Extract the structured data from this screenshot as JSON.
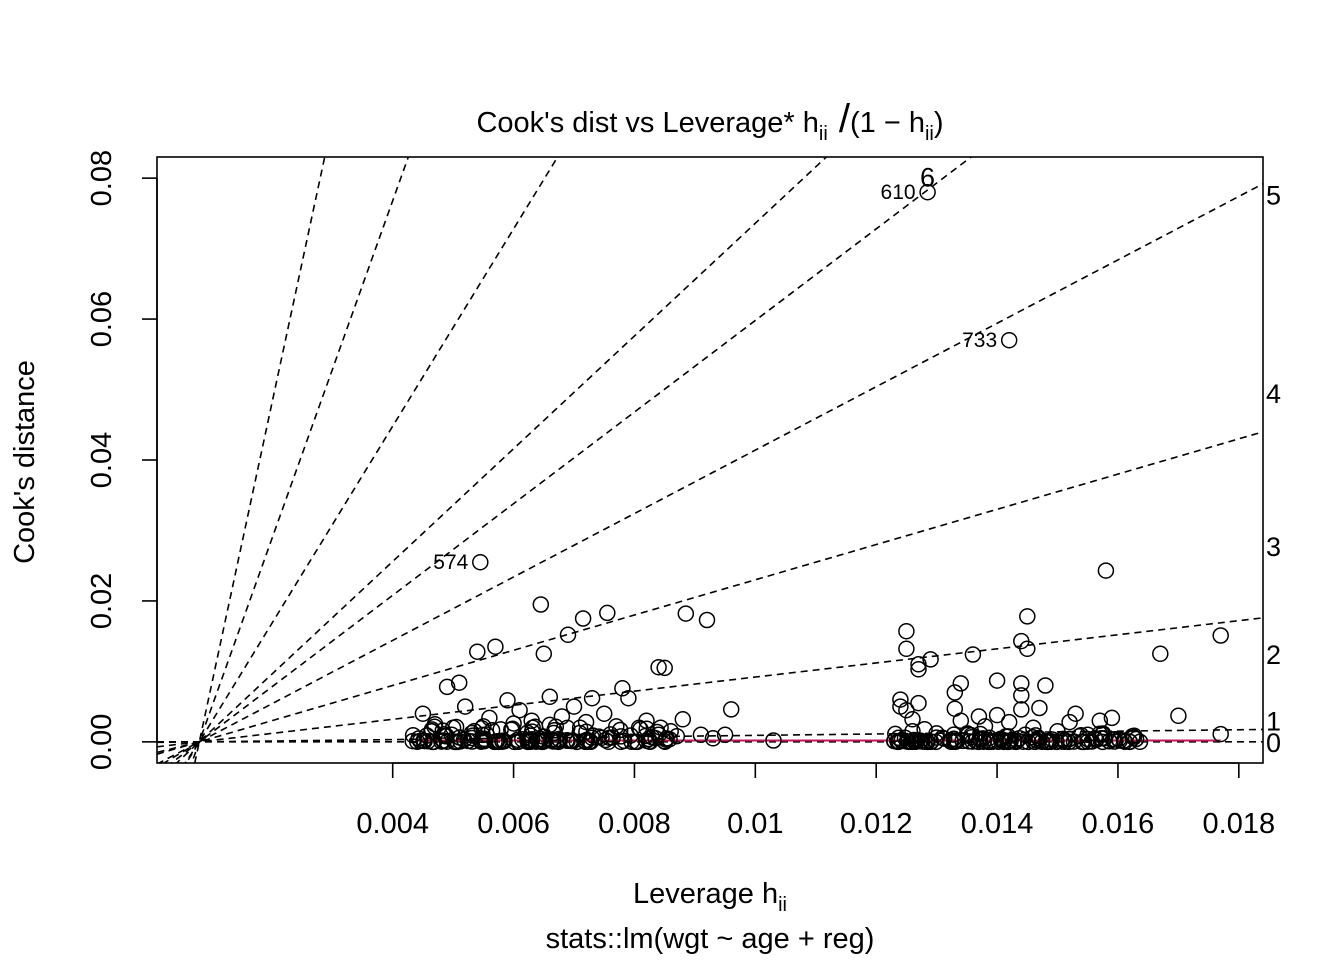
{
  "chart_data": {
    "type": "scatter",
    "title": {
      "prefix": "Cook's dist vs Leverage* h",
      "sub": "ii",
      "formula_open": "(1 − h",
      "formula_sub": "ii",
      "formula_close": ")"
    },
    "xlabel": {
      "main": "Leverage  h",
      "sub": "ii"
    },
    "ylabel": "Cook's distance",
    "subtitle": "stats::lm(wgt ~ age + reg)",
    "xlim": [
      0.0001,
      0.0184
    ],
    "ylim": [
      -0.003,
      0.083
    ],
    "x_ticks": [
      {
        "value": 0.004,
        "label": "0.004"
      },
      {
        "value": 0.006,
        "label": "0.006"
      },
      {
        "value": 0.008,
        "label": "0.008"
      },
      {
        "value": 0.01,
        "label": "0.01"
      },
      {
        "value": 0.012,
        "label": "0.012"
      },
      {
        "value": 0.014,
        "label": "0.014"
      },
      {
        "value": 0.016,
        "label": "0.016"
      },
      {
        "value": 0.018,
        "label": "0.018"
      }
    ],
    "y_ticks": [
      {
        "value": 0.0,
        "label": "0.00"
      },
      {
        "value": 0.02,
        "label": "0.02"
      },
      {
        "value": 0.04,
        "label": "0.04"
      },
      {
        "value": 0.06,
        "label": "0.06"
      },
      {
        "value": 0.08,
        "label": "0.08"
      }
    ],
    "contour_lines": [
      {
        "label": "0",
        "slope": 0.0
      },
      {
        "label": "1",
        "slope": 0.1
      },
      {
        "label": "2",
        "slope": 1.0
      },
      {
        "label": "3",
        "slope": 2.5
      },
      {
        "label": "4",
        "slope": 4.5
      },
      {
        "label": "5",
        "slope": 6.5
      },
      {
        "label": "6",
        "slope": 8.0
      },
      {
        "label": "",
        "slope": 14.0
      },
      {
        "label": "",
        "slope": 24.0
      },
      {
        "label": "",
        "slope": 40.0
      }
    ],
    "right_labels": [
      {
        "label": "0",
        "y": 0.0
      },
      {
        "label": "1",
        "y": 0.003
      },
      {
        "label": "2",
        "y": 0.0125
      },
      {
        "label": "3",
        "y": 0.0278
      },
      {
        "label": "4",
        "y": 0.0495
      },
      {
        "label": "5",
        "y": 0.0777
      }
    ],
    "top_label": {
      "label": "6",
      "x": 0.01285,
      "y": 0.0802
    },
    "labeled_points": [
      {
        "id": "610",
        "x": 0.01285,
        "y": 0.078
      },
      {
        "id": "733",
        "x": 0.0142,
        "y": 0.057
      },
      {
        "id": "574",
        "x": 0.00545,
        "y": 0.0255
      }
    ],
    "points": [
      [
        0.00645,
        0.0195
      ],
      [
        0.00715,
        0.0175
      ],
      [
        0.00755,
        0.0183
      ],
      [
        0.00885,
        0.0182
      ],
      [
        0.0092,
        0.0173
      ],
      [
        0.0069,
        0.0152
      ],
      [
        0.0057,
        0.0135
      ],
      [
        0.0054,
        0.0128
      ],
      [
        0.0065,
        0.0125
      ],
      [
        0.0084,
        0.0106
      ],
      [
        0.0085,
        0.0105
      ],
      [
        0.0049,
        0.0078
      ],
      [
        0.0051,
        0.0084
      ],
      [
        0.0059,
        0.0059
      ],
      [
        0.0078,
        0.0076
      ],
      [
        0.0079,
        0.0062
      ],
      [
        0.0066,
        0.0064
      ],
      [
        0.0073,
        0.0062
      ],
      [
        0.0096,
        0.0046
      ],
      [
        0.0103,
        0.0002
      ],
      [
        0.0045,
        0.004
      ],
      [
        0.0052,
        0.005
      ],
      [
        0.0061,
        0.0045
      ],
      [
        0.007,
        0.005
      ],
      [
        0.0075,
        0.004
      ],
      [
        0.0082,
        0.003
      ],
      [
        0.0088,
        0.0032
      ],
      [
        0.0068,
        0.0036
      ],
      [
        0.0056,
        0.0034
      ],
      [
        0.0063,
        0.003
      ],
      [
        0.0072,
        0.0028
      ],
      [
        0.0047,
        0.0025
      ],
      [
        0.005,
        0.002
      ],
      [
        0.0055,
        0.0022
      ],
      [
        0.006,
        0.0026
      ],
      [
        0.0066,
        0.0024
      ],
      [
        0.0071,
        0.002
      ],
      [
        0.0077,
        0.0022
      ],
      [
        0.0081,
        0.0018
      ],
      [
        0.0086,
        0.0015
      ],
      [
        0.0091,
        0.001
      ],
      [
        0.0093,
        0.0005
      ],
      [
        0.0095,
        0.001
      ],
      [
        0.0087,
        0.0008
      ],
      [
        0.0084,
        0.001
      ],
      [
        0.0125,
        0.0157
      ],
      [
        0.0145,
        0.0178
      ],
      [
        0.0158,
        0.0243
      ],
      [
        0.0177,
        0.0151
      ],
      [
        0.0167,
        0.0125
      ],
      [
        0.0144,
        0.0143
      ],
      [
        0.0145,
        0.0132
      ],
      [
        0.0136,
        0.0124
      ],
      [
        0.0125,
        0.0132
      ],
      [
        0.0127,
        0.011
      ],
      [
        0.0127,
        0.0103
      ],
      [
        0.0129,
        0.0117
      ],
      [
        0.014,
        0.0087
      ],
      [
        0.0144,
        0.0083
      ],
      [
        0.0148,
        0.008
      ],
      [
        0.0134,
        0.0083
      ],
      [
        0.0133,
        0.007
      ],
      [
        0.0144,
        0.0066
      ],
      [
        0.0124,
        0.006
      ],
      [
        0.0127,
        0.0055
      ],
      [
        0.0124,
        0.005
      ],
      [
        0.0125,
        0.0045
      ],
      [
        0.0133,
        0.0047
      ],
      [
        0.0147,
        0.0048
      ],
      [
        0.0144,
        0.0046
      ],
      [
        0.0153,
        0.004
      ],
      [
        0.0137,
        0.0036
      ],
      [
        0.014,
        0.0038
      ],
      [
        0.0159,
        0.0034
      ],
      [
        0.017,
        0.0037
      ],
      [
        0.0126,
        0.0032
      ],
      [
        0.0134,
        0.003
      ],
      [
        0.0142,
        0.0028
      ],
      [
        0.0152,
        0.0028
      ],
      [
        0.0157,
        0.003
      ],
      [
        0.0138,
        0.0022
      ],
      [
        0.0146,
        0.002
      ],
      [
        0.0128,
        0.0018
      ],
      [
        0.015,
        0.0015
      ],
      [
        0.0177,
        0.0011
      ],
      [
        0.0126,
        0.0015
      ],
      [
        0.013,
        0.0012
      ],
      [
        0.0155,
        0.001
      ],
      [
        0.0163,
        0.0004
      ],
      [
        0.0161,
        0.0002
      ]
    ],
    "dense_clusters": [
      {
        "x_from": 0.0043,
        "x_to": 0.0087,
        "y_max": 0.0022
      },
      {
        "x_from": 0.0123,
        "x_to": 0.0164,
        "y_max": 0.0012
      }
    ],
    "smoother": {
      "color": "#c2185b",
      "x_from": 0.0044,
      "x_to": 0.0177,
      "y": 0.0002
    }
  }
}
